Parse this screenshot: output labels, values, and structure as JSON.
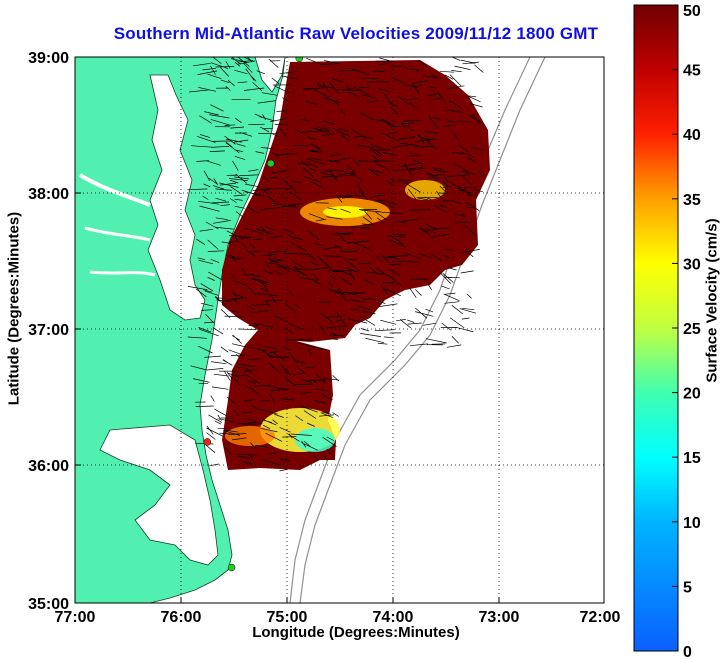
{
  "title": "Southern Mid-Atlantic Raw Velocities 2009/11/12 1800 GMT",
  "axes": {
    "xlabel": "Longitude (Degrees:Minutes)",
    "ylabel": "Latitude (Degrees:Minutes)",
    "xticks": [
      "77:00",
      "76:00",
      "75:00",
      "74:00",
      "73:00",
      "72:00"
    ],
    "yticks": [
      "39:00",
      "38:00",
      "37:00",
      "36:00",
      "35:00"
    ],
    "xlim": [
      -77,
      -72
    ],
    "ylim": [
      35,
      39
    ]
  },
  "colorbar": {
    "label": "Surface Velocity (cm/s)",
    "ticks": [
      "0",
      "5",
      "10",
      "15",
      "20",
      "25",
      "30",
      "35",
      "40",
      "45",
      "50"
    ],
    "range": [
      0,
      50
    ]
  },
  "colors": {
    "land": "#52f0b0",
    "ocean": "#ffffff",
    "title": "#1010e0",
    "grid": "#000000",
    "high_velocity": "#8b0000",
    "site_active": "#22cc22",
    "site_inactive": "#ee2222"
  },
  "sites": [
    {
      "lon": -74.88,
      "lat": 38.99,
      "status": "active"
    },
    {
      "lon": -75.15,
      "lat": 38.22,
      "status": "active"
    },
    {
      "lon": -75.75,
      "lat": 36.18,
      "status": "inactive"
    },
    {
      "lon": -75.52,
      "lat": 35.26,
      "status": "active"
    }
  ]
}
